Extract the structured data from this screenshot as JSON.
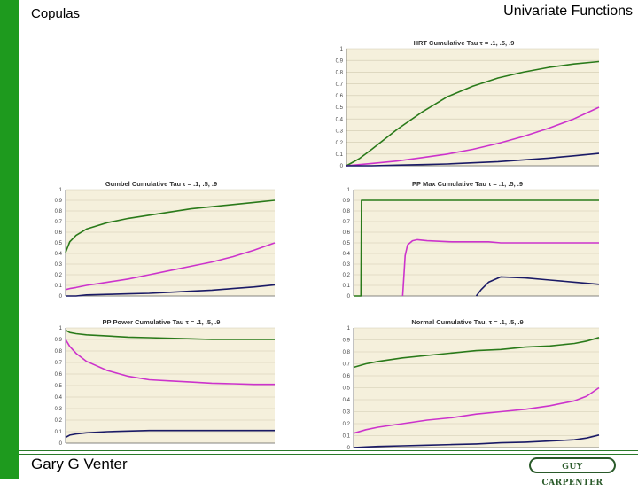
{
  "slide": {
    "left_title": "Copulas",
    "right_title": "Univariate Functions",
    "author": "Gary G Venter",
    "logo_text": "GUY CARPENTER"
  },
  "colors": {
    "plot_bg": "#f5f0dc",
    "grid": "#cfc9b0",
    "tau_01": "#1a1a66",
    "tau_05": "#cc33cc",
    "tau_09": "#2a7a1a",
    "accent": "#1e9a1e"
  },
  "chart_data": [
    {
      "id": "hrt",
      "type": "line",
      "title": "HRT Cumulative Tau τ = .1, .5, .9",
      "ylim": [
        0,
        1
      ],
      "yticks": [
        "0",
        "0.1",
        "0.2",
        "0.3",
        "0.4",
        "0.5",
        "0.6",
        "0.7",
        "0.8",
        "0.9",
        "1"
      ],
      "grid": true,
      "x": [
        0,
        0.05,
        0.1,
        0.2,
        0.3,
        0.4,
        0.5,
        0.6,
        0.7,
        0.8,
        0.9,
        1.0
      ],
      "series": [
        {
          "color_key": "tau_09",
          "values": [
            0.0,
            0.06,
            0.14,
            0.31,
            0.46,
            0.59,
            0.68,
            0.75,
            0.8,
            0.84,
            0.87,
            0.89
          ]
        },
        {
          "color_key": "tau_05",
          "values": [
            0.0,
            0.01,
            0.02,
            0.04,
            0.07,
            0.1,
            0.14,
            0.19,
            0.25,
            0.32,
            0.4,
            0.5
          ]
        },
        {
          "color_key": "tau_01",
          "values": [
            0.0,
            0.0,
            0.0,
            0.005,
            0.01,
            0.015,
            0.025,
            0.035,
            0.05,
            0.065,
            0.085,
            0.105
          ]
        }
      ]
    },
    {
      "id": "gumbel",
      "type": "line",
      "title": "Gumbel Cumulative Tau τ = .1, .5, .9",
      "ylim": [
        0,
        1
      ],
      "yticks": [
        "0",
        "0.1",
        "0.2",
        "0.3",
        "0.4",
        "0.5",
        "0.6",
        "0.7",
        "0.8",
        "0.9",
        "1"
      ],
      "grid": true,
      "x": [
        0,
        0.02,
        0.05,
        0.1,
        0.2,
        0.3,
        0.4,
        0.5,
        0.6,
        0.7,
        0.8,
        0.9,
        1.0
      ],
      "series": [
        {
          "color_key": "tau_09",
          "values": [
            0.41,
            0.51,
            0.57,
            0.63,
            0.69,
            0.73,
            0.76,
            0.79,
            0.82,
            0.84,
            0.86,
            0.88,
            0.9
          ]
        },
        {
          "color_key": "tau_05",
          "values": [
            0.06,
            0.07,
            0.08,
            0.1,
            0.13,
            0.16,
            0.2,
            0.24,
            0.28,
            0.32,
            0.37,
            0.43,
            0.5
          ]
        },
        {
          "color_key": "tau_01",
          "values": [
            0.0,
            0.0,
            0.0,
            0.01,
            0.015,
            0.02,
            0.025,
            0.035,
            0.045,
            0.055,
            0.07,
            0.085,
            0.105
          ]
        }
      ]
    },
    {
      "id": "ppmax",
      "type": "line",
      "title": "PP Max Cumulative Tau τ = .1, .5, .9",
      "ylim": [
        0,
        1
      ],
      "yticks": [
        "0",
        "0.1",
        "0.2",
        "0.3",
        "0.4",
        "0.5",
        "0.6",
        "0.7",
        "0.8",
        "0.9",
        "1"
      ],
      "grid": true,
      "x": [
        0,
        0.03,
        0.032,
        0.1,
        0.2,
        0.21,
        0.22,
        0.24,
        0.26,
        0.3,
        0.4,
        0.5,
        0.52,
        0.55,
        0.6,
        0.7,
        0.8,
        0.9,
        1.0
      ],
      "series": [
        {
          "color_key": "tau_09",
          "values": [
            0.0,
            0.0,
            0.9,
            0.9,
            0.9,
            0.9,
            0.9,
            0.9,
            0.9,
            0.9,
            0.9,
            0.9,
            0.9,
            0.9,
            0.9,
            0.9,
            0.9,
            0.9,
            0.9
          ]
        },
        {
          "color_key": "tau_05",
          "values": [
            null,
            null,
            null,
            null,
            0.0,
            0.38,
            0.48,
            0.52,
            0.53,
            0.52,
            0.51,
            0.51,
            0.51,
            0.51,
            0.5,
            0.5,
            0.5,
            0.5,
            0.5
          ]
        },
        {
          "color_key": "tau_01",
          "values": [
            null,
            null,
            null,
            null,
            null,
            null,
            null,
            null,
            null,
            null,
            null,
            0.0,
            0.06,
            0.13,
            0.18,
            0.17,
            0.15,
            0.13,
            0.11
          ]
        }
      ]
    },
    {
      "id": "pppower",
      "type": "line",
      "title": "PP Power Cumulative Tau τ = .1, .5, .9",
      "ylim": [
        0,
        1
      ],
      "yticks": [
        "0",
        "0.1",
        "0.2",
        "0.3",
        "0.4",
        "0.5",
        "0.6",
        "0.7",
        "0.8",
        "0.9",
        "1"
      ],
      "grid": true,
      "x": [
        0,
        0.02,
        0.05,
        0.1,
        0.2,
        0.3,
        0.4,
        0.5,
        0.6,
        0.7,
        0.8,
        0.9,
        1.0
      ],
      "series": [
        {
          "color_key": "tau_09",
          "values": [
            0.98,
            0.96,
            0.95,
            0.94,
            0.93,
            0.92,
            0.915,
            0.91,
            0.905,
            0.9,
            0.9,
            0.9,
            0.9
          ]
        },
        {
          "color_key": "tau_05",
          "values": [
            0.9,
            0.84,
            0.78,
            0.71,
            0.63,
            0.58,
            0.55,
            0.54,
            0.53,
            0.52,
            0.515,
            0.51,
            0.51
          ]
        },
        {
          "color_key": "tau_01",
          "values": [
            0.05,
            0.07,
            0.08,
            0.09,
            0.1,
            0.105,
            0.11,
            0.11,
            0.11,
            0.11,
            0.11,
            0.11,
            0.11
          ]
        }
      ]
    },
    {
      "id": "normal",
      "type": "line",
      "title": "Normal Cumulative Tau, τ = .1, .5, .9",
      "ylim": [
        0,
        1
      ],
      "yticks": [
        "0",
        "0.1",
        "0.2",
        "0.3",
        "0.4",
        "0.5",
        "0.6",
        "0.7",
        "0.8",
        "0.9",
        "1"
      ],
      "grid": true,
      "x": [
        0,
        0.05,
        0.1,
        0.2,
        0.3,
        0.4,
        0.5,
        0.6,
        0.7,
        0.8,
        0.9,
        0.95,
        1.0
      ],
      "series": [
        {
          "color_key": "tau_09",
          "values": [
            0.67,
            0.7,
            0.72,
            0.75,
            0.77,
            0.79,
            0.81,
            0.82,
            0.84,
            0.85,
            0.87,
            0.89,
            0.92
          ]
        },
        {
          "color_key": "tau_05",
          "values": [
            0.12,
            0.15,
            0.17,
            0.2,
            0.23,
            0.25,
            0.28,
            0.3,
            0.32,
            0.35,
            0.39,
            0.43,
            0.5
          ]
        },
        {
          "color_key": "tau_01",
          "values": [
            0.0,
            0.005,
            0.01,
            0.015,
            0.02,
            0.025,
            0.03,
            0.04,
            0.045,
            0.055,
            0.065,
            0.08,
            0.105
          ]
        }
      ]
    }
  ]
}
